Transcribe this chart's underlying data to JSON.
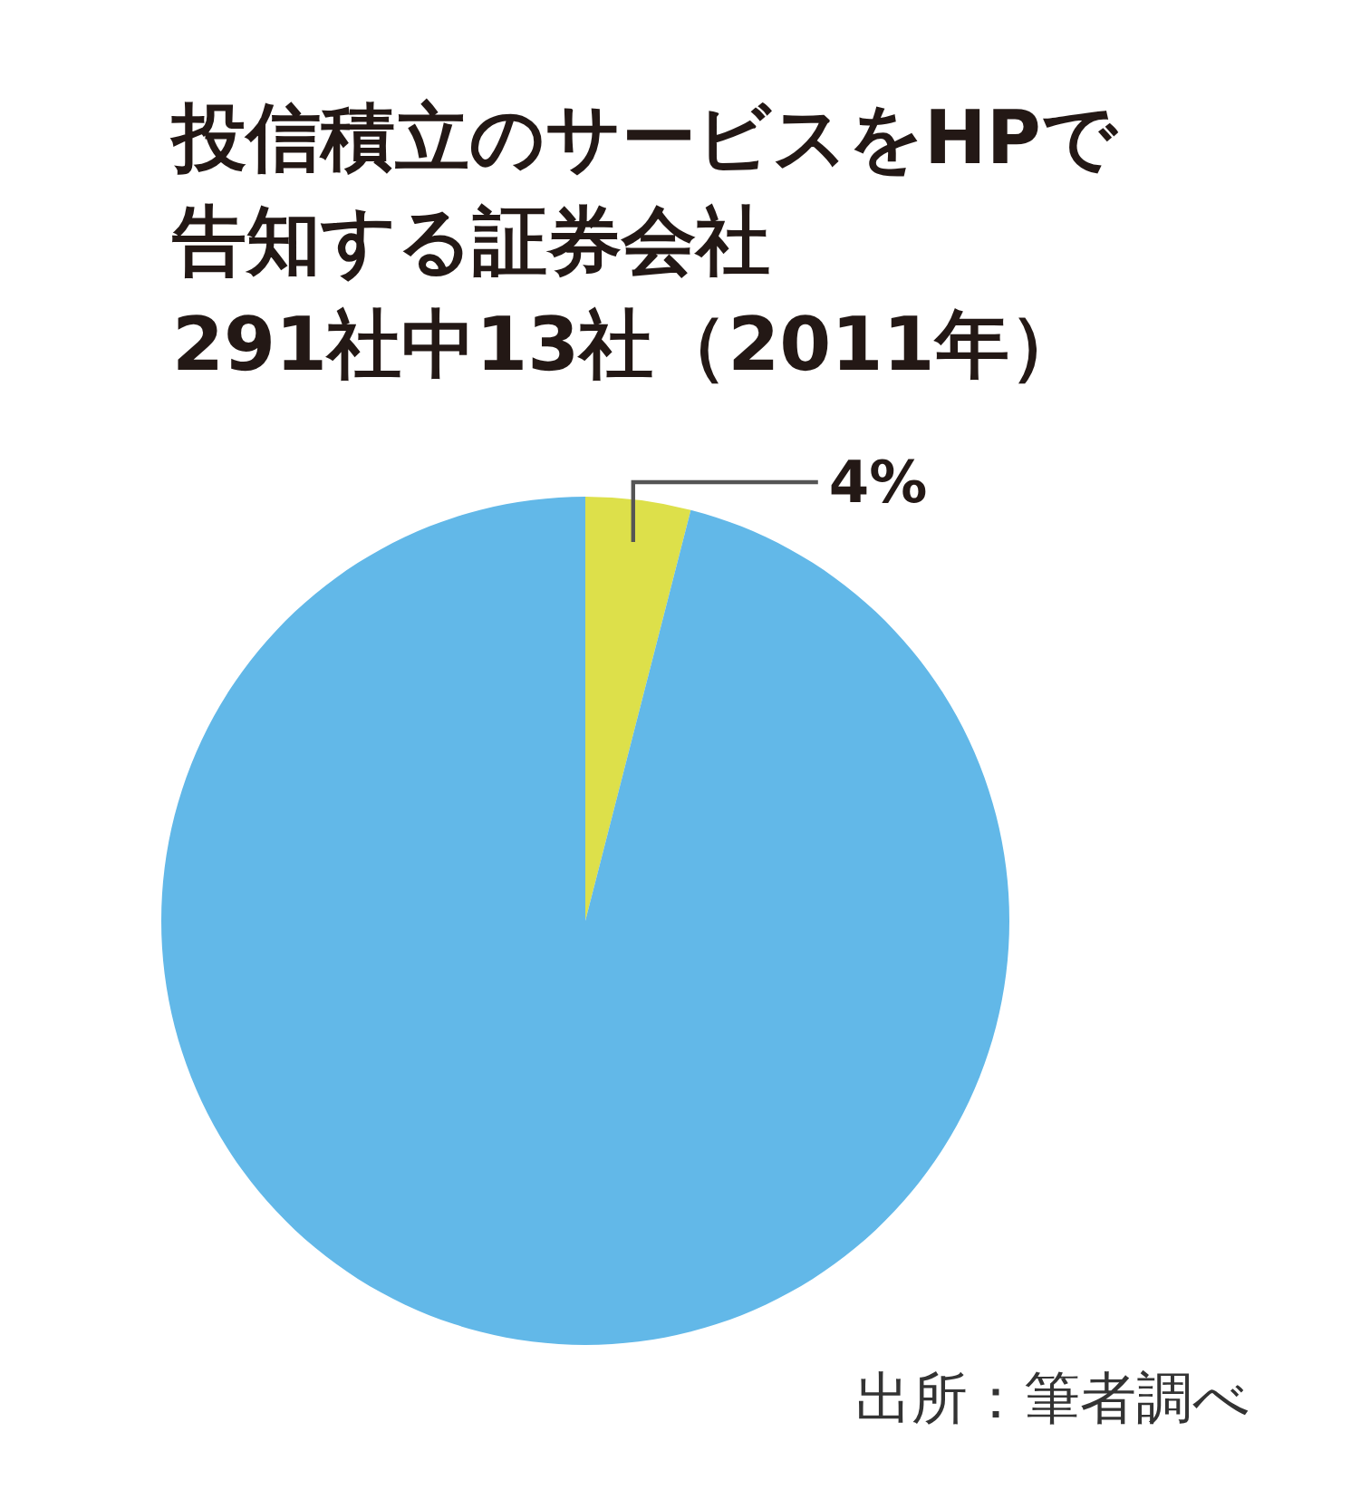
{
  "chart_data": {
    "type": "pie",
    "title": "投信積立のサービスをHPで告知する証券会社",
    "subtitle": "291社中13社（2011年）",
    "categories": [
      null,
      null
    ],
    "values": [
      4,
      96
    ],
    "colors": [
      "#dde04a",
      "#62b8e8"
    ],
    "value_labels": [
      "4%",
      null
    ],
    "annotations": [
      "出所：筆者調べ"
    ]
  }
}
